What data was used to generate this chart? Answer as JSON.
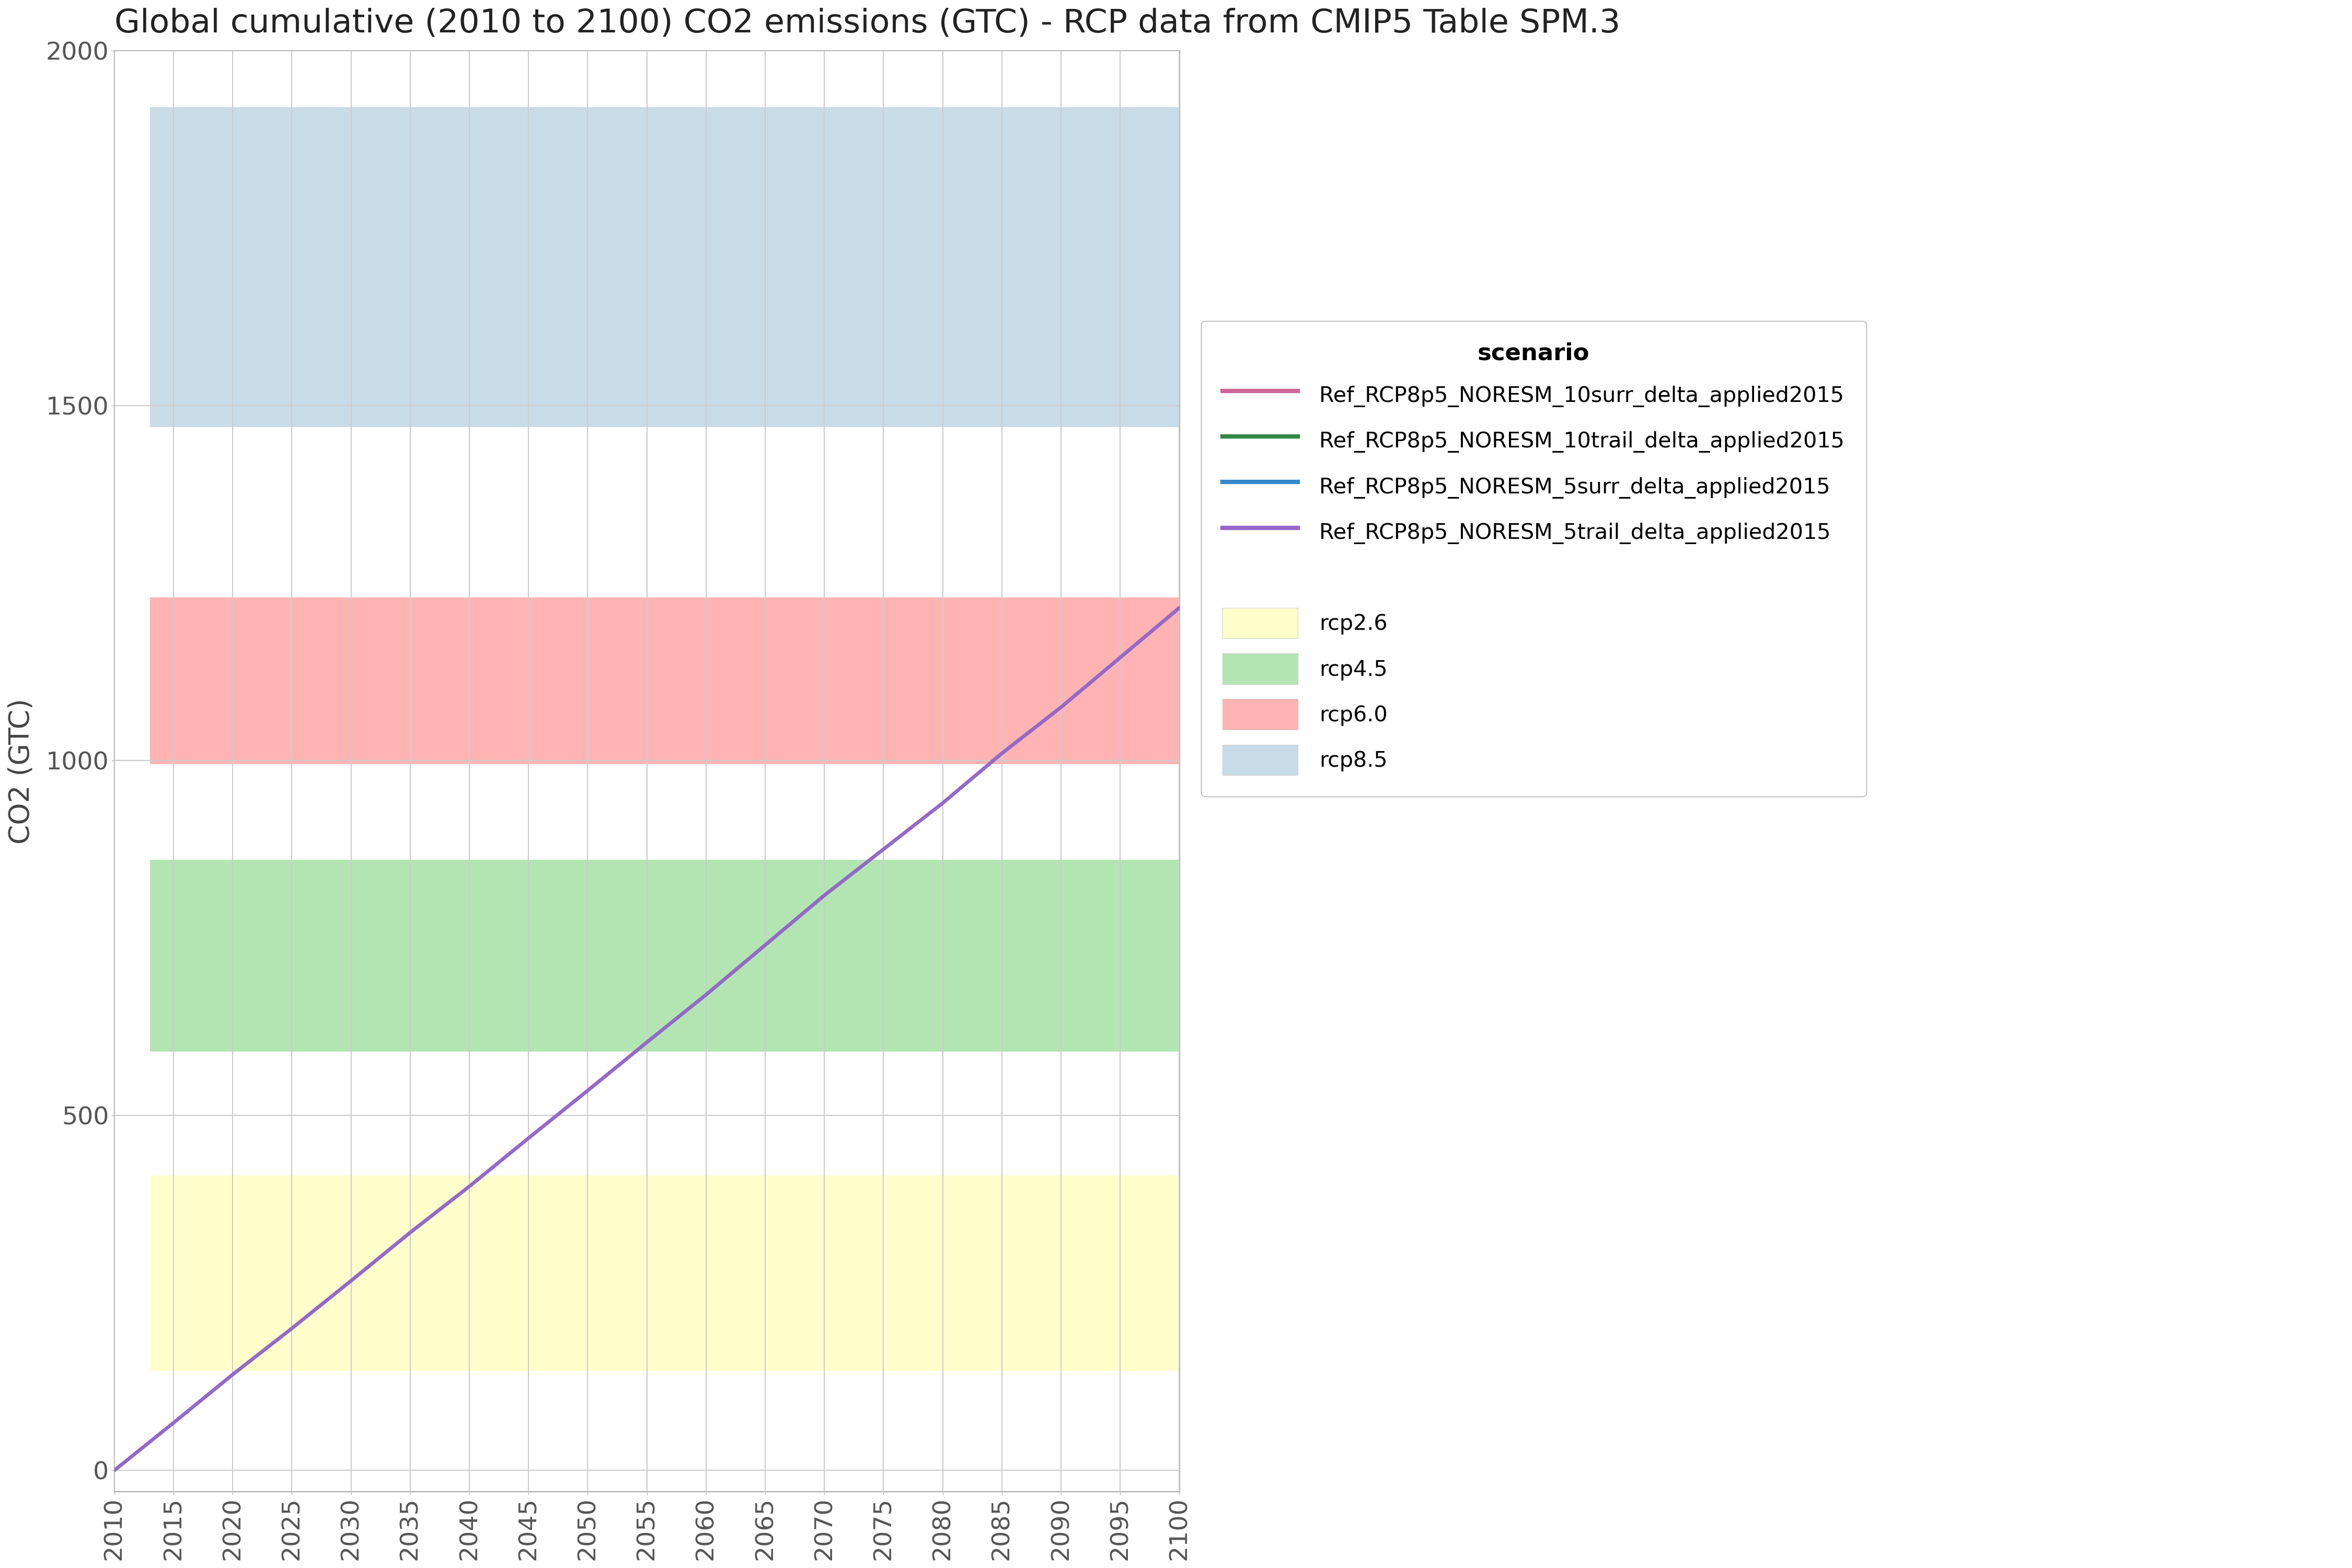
{
  "title": "Global cumulative (2010 to 2100) CO2 emissions (GTC) - RCP data from CMIP5 Table SPM.3",
  "xlabel": "",
  "ylabel": "CO2 (GTC)",
  "xlim": [
    2010,
    2100
  ],
  "ylim": [
    -30,
    2000
  ],
  "yticks": [
    0,
    500,
    1000,
    1500,
    2000
  ],
  "xticks": [
    2010,
    2015,
    2020,
    2025,
    2030,
    2035,
    2040,
    2045,
    2050,
    2055,
    2060,
    2065,
    2070,
    2075,
    2080,
    2085,
    2090,
    2095,
    2100
  ],
  "rcp_bands": [
    {
      "label": "rcp2.6",
      "xmin": 2013,
      "xmax": 2100,
      "ymin": 140,
      "ymax": 415,
      "color": "#ffffcc"
    },
    {
      "label": "rcp4.5",
      "xmin": 2013,
      "xmax": 2100,
      "ymin": 590,
      "ymax": 860,
      "color": "#b3e5b3"
    },
    {
      "label": "rcp6.0",
      "xmin": 2013,
      "xmax": 2100,
      "ymin": 995,
      "ymax": 1230,
      "color": "#ffb3b3"
    },
    {
      "label": "rcp8.5",
      "xmin": 2013,
      "xmax": 2100,
      "ymin": 1470,
      "ymax": 1920,
      "color": "#c8dce8"
    }
  ],
  "lines": [
    {
      "label": "Ref_RCP8p5_NORESM_10surr_delta_applied2015",
      "color": "#cc6699",
      "lw": 2.5,
      "x": [
        2010,
        2015,
        2020,
        2025,
        2030,
        2035,
        2040,
        2045,
        2050,
        2055,
        2060,
        2065,
        2070,
        2075,
        2080,
        2085,
        2090,
        2095,
        2100
      ],
      "y": [
        0,
        67,
        135,
        200,
        267,
        335,
        400,
        468,
        535,
        603,
        670,
        740,
        810,
        875,
        940,
        1010,
        1075,
        1145,
        1215
      ]
    },
    {
      "label": "Ref_RCP8p5_NORESM_10trail_delta_applied2015",
      "color": "#338844",
      "lw": 2.5,
      "x": [
        2010,
        2015,
        2020,
        2025,
        2030,
        2035,
        2040,
        2045,
        2050,
        2055,
        2060,
        2065,
        2070,
        2075,
        2080,
        2085,
        2090,
        2095,
        2100
      ],
      "y": [
        0,
        67,
        135,
        200,
        267,
        335,
        400,
        468,
        535,
        603,
        670,
        740,
        810,
        875,
        940,
        1010,
        1075,
        1145,
        1215
      ]
    },
    {
      "label": "Ref_RCP8p5_NORESM_5surr_delta_applied2015",
      "color": "#3388cc",
      "lw": 2.5,
      "x": [
        2010,
        2015,
        2020,
        2025,
        2030,
        2035,
        2040,
        2045,
        2050,
        2055,
        2060,
        2065,
        2070,
        2075,
        2080,
        2085,
        2090,
        2095,
        2100
      ],
      "y": [
        0,
        67,
        135,
        200,
        267,
        335,
        400,
        468,
        535,
        603,
        670,
        740,
        810,
        875,
        940,
        1010,
        1075,
        1145,
        1215
      ]
    },
    {
      "label": "Ref_RCP8p5_NORESM_5trail_delta_applied2015",
      "color": "#9966cc",
      "lw": 2.5,
      "x": [
        2010,
        2015,
        2020,
        2025,
        2030,
        2035,
        2040,
        2045,
        2050,
        2055,
        2060,
        2065,
        2070,
        2075,
        2080,
        2085,
        2090,
        2095,
        2100
      ],
      "y": [
        0,
        67,
        135,
        200,
        267,
        335,
        400,
        468,
        535,
        603,
        670,
        740,
        810,
        875,
        940,
        1010,
        1075,
        1145,
        1215
      ]
    }
  ],
  "background_color": "#ffffff",
  "grid_color": "#cccccc",
  "title_fontsize": 13,
  "axis_label_fontsize": 11,
  "tick_fontsize": 9,
  "legend_title": "scenario",
  "rcp_legend_labels": [
    "rcp2.6",
    "rcp4.5",
    "rcp6.0",
    "rcp8.5"
  ],
  "rcp_legend_colors": [
    "#ffffcc",
    "#b3e5b3",
    "#ffb3b3",
    "#c8dce8"
  ]
}
